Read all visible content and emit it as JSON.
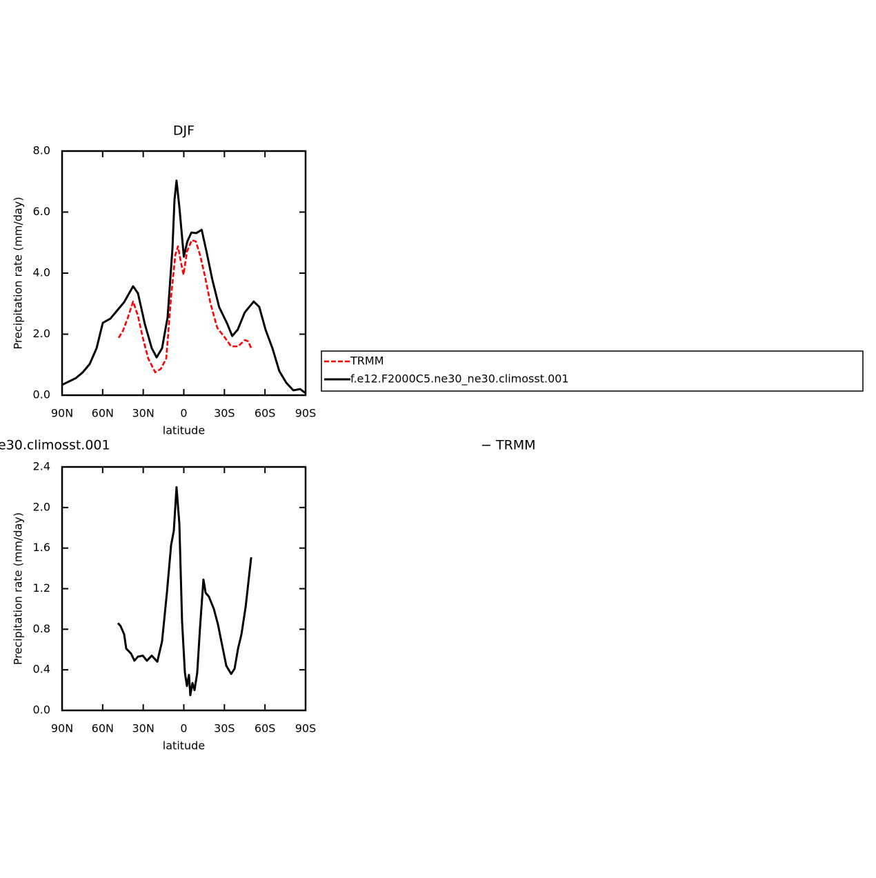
{
  "chart_data": [
    {
      "type": "line",
      "title": "DJF",
      "xlabel": "latitude",
      "ylabel": "Precipitation rate (mm/day)",
      "xlim": [
        90,
        -90
      ],
      "xticks": [
        {
          "value": 90,
          "label": "90N"
        },
        {
          "value": 60,
          "label": "60N"
        },
        {
          "value": 30,
          "label": "30N"
        },
        0,
        {
          "value": -30,
          "label": "30S"
        },
        {
          "value": -60,
          "label": "60S"
        },
        {
          "value": -90,
          "label": "90S"
        }
      ],
      "ylim": [
        0,
        8
      ],
      "yticks": [
        {
          "value": 0,
          "label": "0.0"
        },
        {
          "value": 2,
          "label": "2.0"
        },
        {
          "value": 4,
          "label": "4.0"
        },
        {
          "value": 6,
          "label": "6.0"
        },
        {
          "value": 8,
          "label": "8.0"
        }
      ],
      "legend": "right",
      "series": [
        {
          "name": "TRMM",
          "color": "#ff0000",
          "dashed": true,
          "x": [
            48.2,
            45.1,
            41.6,
            37.5,
            33.9,
            30.3,
            26.3,
            21.1,
            17.1,
            13.0,
            9.4,
            6.3,
            4.3,
            2.2,
            0.2,
            -2.3,
            -5.9,
            -8.9,
            -12.0,
            -15.6,
            -19.7,
            -24.7,
            -29.8,
            -35.0,
            -40.1,
            -45.2,
            -47.7,
            -49.8
          ],
          "values": [
            1.88,
            2.1,
            2.51,
            3.07,
            2.6,
            1.88,
            1.2,
            0.75,
            0.86,
            1.2,
            3.23,
            4.59,
            4.88,
            4.36,
            3.95,
            4.7,
            5.08,
            5.04,
            4.59,
            3.91,
            3.01,
            2.21,
            1.92,
            1.6,
            1.6,
            1.81,
            1.76,
            1.54
          ]
        },
        {
          "name": "f.e12.F2000C5.ne30_ne30.climosst.001",
          "color": "#000000",
          "dashed": false,
          "x": [
            90,
            79.8,
            74.7,
            69.6,
            64.5,
            59.9,
            54.3,
            49.2,
            44.1,
            37.5,
            33.9,
            28.8,
            23.7,
            20.1,
            16.1,
            12.0,
            8.4,
            6.9,
            5.4,
            3.3,
            0,
            -2.6,
            -5.6,
            -9.1,
            -13.2,
            -16.8,
            -21.0,
            -26.1,
            -32.2,
            -35.8,
            -39.9,
            -45.0,
            -51.7,
            -55.8,
            -60.4,
            -65.5,
            -70.6,
            -75.7,
            -80.9,
            -86.0,
            -90
          ],
          "values": [
            0.34,
            0.56,
            0.75,
            1.02,
            1.54,
            2.37,
            2.51,
            2.78,
            3.05,
            3.57,
            3.34,
            2.33,
            1.54,
            1.24,
            1.54,
            2.55,
            4.81,
            6.4,
            7.03,
            6.17,
            4.54,
            5.04,
            5.33,
            5.31,
            5.42,
            4.7,
            3.8,
            2.89,
            2.33,
            1.94,
            2.15,
            2.71,
            3.07,
            2.89,
            2.15,
            1.54,
            0.79,
            0.41,
            0.16,
            0.2,
            0.07
          ]
        }
      ]
    },
    {
      "type": "line",
      "title": [
        "e30.climosst.001",
        "−  TRMM"
      ],
      "xlabel": "latitude",
      "ylabel": "Precipitation rate (mm/day)",
      "xlim": [
        90,
        -90
      ],
      "xticks": [
        {
          "value": 90,
          "label": "90N"
        },
        {
          "value": 60,
          "label": "60N"
        },
        {
          "value": 30,
          "label": "30N"
        },
        0,
        {
          "value": -30,
          "label": "30S"
        },
        {
          "value": -60,
          "label": "60S"
        },
        {
          "value": -90,
          "label": "90S"
        }
      ],
      "ylim": [
        0,
        2.4
      ],
      "yticks": [
        {
          "value": 0,
          "label": "0.0"
        },
        0.4,
        0.8,
        1.2,
        1.6,
        {
          "value": 2,
          "label": "2.0"
        },
        2.4
      ],
      "series": [
        {
          "color": "#000000",
          "dashed": false,
          "x": [
            48.7,
            46.7,
            44.1,
            42.6,
            39.0,
            36.5,
            33.9,
            30.3,
            27.3,
            23.7,
            19.6,
            16.1,
            12.5,
            9.4,
            7.4,
            5.4,
            3.3,
            1.3,
            -0.8,
            -2.3,
            -3.8,
            -4.8,
            -6.4,
            -7.9,
            -9.9,
            -12.0,
            -14.5,
            -16.1,
            -18.6,
            -22.2,
            -25.2,
            -27.3,
            -31.4,
            -35.0,
            -37.5,
            -40.1,
            -42.6,
            -45.7,
            -49.8
          ],
          "values": [
            0.86,
            0.83,
            0.75,
            0.61,
            0.56,
            0.49,
            0.53,
            0.54,
            0.49,
            0.54,
            0.48,
            0.68,
            1.16,
            1.63,
            1.77,
            2.2,
            1.84,
            0.88,
            0.37,
            0.24,
            0.35,
            0.15,
            0.27,
            0.2,
            0.37,
            0.82,
            1.29,
            1.16,
            1.12,
            1.0,
            0.85,
            0.71,
            0.44,
            0.36,
            0.41,
            0.61,
            0.75,
            1.02,
            1.51
          ]
        }
      ]
    }
  ]
}
